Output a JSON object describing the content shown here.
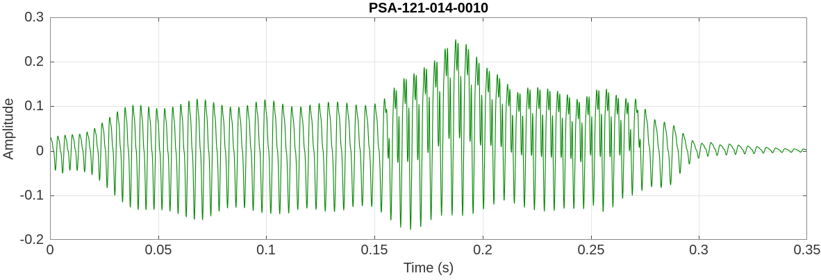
{
  "chart_data": {
    "type": "line",
    "title": "PSA-121-014-0010",
    "xlabel": "Time (s)",
    "ylabel": "Amplitude",
    "xlim": [
      0,
      0.35
    ],
    "ylim": [
      -0.2,
      0.3
    ],
    "grid": true,
    "legend": "none",
    "xticks": [
      {
        "v": 0,
        "label": "0"
      },
      {
        "v": 0.05,
        "label": "0.05"
      },
      {
        "v": 0.1,
        "label": "0.1"
      },
      {
        "v": 0.15,
        "label": "0.15"
      },
      {
        "v": 0.2,
        "label": "0.2"
      },
      {
        "v": 0.25,
        "label": "0.25"
      },
      {
        "v": 0.3,
        "label": "0.3"
      },
      {
        "v": 0.35,
        "label": "0.35"
      }
    ],
    "yticks": [
      {
        "v": -0.2,
        "label": "-0.2"
      },
      {
        "v": -0.1,
        "label": "-0.1"
      },
      {
        "v": 0,
        "label": "0"
      },
      {
        "v": 0.1,
        "label": "0.1"
      },
      {
        "v": 0.2,
        "label": "0.2"
      },
      {
        "v": 0.3,
        "label": "0.3"
      }
    ],
    "colors": {
      "line": "#0a8a0a",
      "axes_box": "#8a8a8a",
      "grid": "#e4e4e4",
      "tick": "#4a4a4a",
      "text": "#333333",
      "title_text": "#000000"
    },
    "series": [
      {
        "name": "signal",
        "representation": "envelope [t_seconds, peak_max, trough_min] of a dense speech-like waveform",
        "pitch_hz_profile": [
          [
            0,
            300
          ],
          [
            0.05,
            272
          ],
          [
            0.1,
            245
          ],
          [
            0.14,
            232
          ],
          [
            0.18,
            206
          ],
          [
            0.22,
            214
          ],
          [
            0.26,
            224
          ],
          [
            0.3,
            232
          ],
          [
            0.35,
            235
          ]
        ],
        "envelope": [
          [
            0.0,
            0.028,
            -0.034
          ],
          [
            0.005,
            0.032,
            -0.05
          ],
          [
            0.01,
            0.036,
            -0.042
          ],
          [
            0.015,
            0.04,
            -0.048
          ],
          [
            0.02,
            0.052,
            -0.058
          ],
          [
            0.025,
            0.068,
            -0.078
          ],
          [
            0.03,
            0.082,
            -0.098
          ],
          [
            0.035,
            0.092,
            -0.115
          ],
          [
            0.04,
            0.1,
            -0.128
          ],
          [
            0.045,
            0.102,
            -0.136
          ],
          [
            0.05,
            0.102,
            -0.14
          ],
          [
            0.06,
            0.103,
            -0.142
          ],
          [
            0.07,
            0.11,
            -0.15
          ],
          [
            0.08,
            0.108,
            -0.138
          ],
          [
            0.09,
            0.102,
            -0.131
          ],
          [
            0.1,
            0.108,
            -0.133
          ],
          [
            0.11,
            0.104,
            -0.144
          ],
          [
            0.12,
            0.108,
            -0.134
          ],
          [
            0.13,
            0.103,
            -0.131
          ],
          [
            0.14,
            0.104,
            -0.126
          ],
          [
            0.15,
            0.112,
            -0.134
          ],
          [
            0.155,
            0.12,
            -0.148
          ],
          [
            0.16,
            0.14,
            -0.16
          ],
          [
            0.165,
            0.158,
            -0.168
          ],
          [
            0.17,
            0.172,
            -0.172
          ],
          [
            0.175,
            0.2,
            -0.165
          ],
          [
            0.18,
            0.222,
            -0.158
          ],
          [
            0.185,
            0.256,
            -0.152
          ],
          [
            0.19,
            0.248,
            -0.143
          ],
          [
            0.195,
            0.215,
            -0.133
          ],
          [
            0.2,
            0.184,
            -0.125
          ],
          [
            0.205,
            0.18,
            -0.122
          ],
          [
            0.21,
            0.168,
            -0.12
          ],
          [
            0.215,
            0.136,
            -0.126
          ],
          [
            0.22,
            0.142,
            -0.13
          ],
          [
            0.23,
            0.132,
            -0.128
          ],
          [
            0.24,
            0.13,
            -0.132
          ],
          [
            0.245,
            0.122,
            -0.146
          ],
          [
            0.25,
            0.132,
            -0.122
          ],
          [
            0.255,
            0.142,
            -0.136
          ],
          [
            0.26,
            0.122,
            -0.12
          ],
          [
            0.265,
            0.112,
            -0.102
          ],
          [
            0.27,
            0.122,
            -0.1
          ],
          [
            0.275,
            0.1,
            -0.092
          ],
          [
            0.28,
            0.072,
            -0.082
          ],
          [
            0.285,
            0.064,
            -0.088
          ],
          [
            0.29,
            0.05,
            -0.054
          ],
          [
            0.295,
            0.026,
            -0.03
          ],
          [
            0.3,
            0.016,
            -0.016
          ],
          [
            0.305,
            0.02,
            -0.012
          ],
          [
            0.31,
            0.014,
            -0.011
          ],
          [
            0.315,
            0.016,
            -0.009
          ],
          [
            0.32,
            0.011,
            -0.007
          ],
          [
            0.33,
            0.008,
            -0.005
          ],
          [
            0.34,
            0.005,
            -0.004
          ],
          [
            0.35,
            0.004,
            -0.003
          ]
        ]
      }
    ]
  }
}
